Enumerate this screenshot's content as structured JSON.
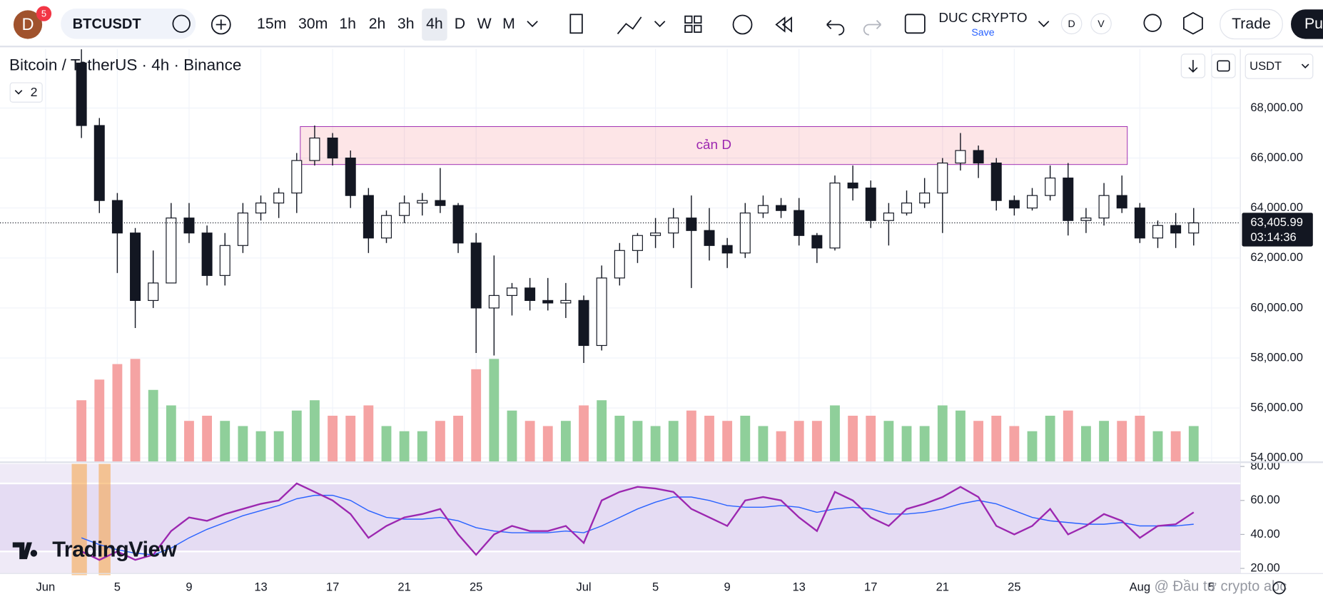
{
  "toolbar": {
    "avatar": "D",
    "badge": "5",
    "symbol": "BTCUSDT",
    "intervals": [
      "15m",
      "30m",
      "1h",
      "2h",
      "3h",
      "4h",
      "D",
      "W",
      "M"
    ],
    "active_interval": 5,
    "layout_name": "DUC CRYPTO",
    "save": "Save",
    "toggles": [
      "D",
      "V"
    ],
    "trade": "Trade",
    "publish": "Pu"
  },
  "legend": {
    "indicators_count": "2"
  },
  "currency": "USDT",
  "logo": "TradingView",
  "watermark": "@ Đầu tư crypto abc",
  "chart_data": [
    {
      "type": "candlestick",
      "title": "Bitcoin / TetherUS · 4h · Binance",
      "candle_color": "#131722",
      "volume_colors": {
        "up": "#8fcf9a",
        "down": "#f5a3a3"
      },
      "x": [
        3,
        4,
        5,
        6,
        7,
        8,
        9,
        10,
        11,
        12,
        13,
        14,
        15,
        16,
        17,
        18,
        19,
        20,
        21,
        22,
        23,
        24,
        25,
        26,
        27,
        28,
        29,
        30,
        31,
        32,
        33,
        34,
        35,
        36,
        37,
        38,
        39,
        40,
        41,
        42,
        43,
        44,
        45,
        46,
        47,
        48,
        49,
        50,
        51,
        52,
        53,
        54,
        55,
        56,
        57,
        58,
        59,
        60,
        61,
        62,
        63,
        64,
        65
      ],
      "open": [
        69800,
        67300,
        64300,
        63000,
        60300,
        61000,
        63600,
        63000,
        61300,
        62500,
        63800,
        64200,
        64600,
        65900,
        66800,
        66000,
        64500,
        62800,
        63700,
        64200,
        64300,
        64100,
        62600,
        60000,
        60500,
        60800,
        60300,
        60200,
        60300,
        58500,
        61200,
        62300,
        62900,
        63000,
        63600,
        63100,
        62500,
        62200,
        63800,
        64100,
        63900,
        62900,
        62400,
        65000,
        64800,
        63500,
        63800,
        64200,
        64600,
        65800,
        66300,
        65800,
        64300,
        64000,
        64500,
        65200,
        63500,
        63600,
        64500,
        64000,
        62800,
        63300,
        63000
      ],
      "high": [
        70350,
        67600,
        64600,
        63200,
        62300,
        64200,
        64200,
        63300,
        63000,
        64200,
        64500,
        64800,
        66200,
        67300,
        67000,
        66300,
        64800,
        63900,
        64500,
        64600,
        65600,
        64200,
        63000,
        62100,
        61000,
        61200,
        61200,
        61000,
        60500,
        61700,
        62600,
        63000,
        63600,
        64000,
        64500,
        64000,
        62800,
        64200,
        64500,
        64400,
        64400,
        63000,
        65300,
        65700,
        65100,
        64200,
        64700,
        65200,
        66000,
        67000,
        66500,
        66000,
        64500,
        64800,
        65700,
        65800,
        64000,
        65000,
        65300,
        64200,
        63500,
        63800,
        64000
      ],
      "low": [
        66800,
        63800,
        61400,
        59200,
        60000,
        61000,
        62600,
        60900,
        60900,
        62200,
        63500,
        63600,
        63800,
        65700,
        65700,
        64000,
        62200,
        62600,
        63400,
        63700,
        63800,
        62200,
        58200,
        58100,
        59700,
        59900,
        59900,
        59600,
        57800,
        58300,
        60900,
        61800,
        62400,
        62400,
        60800,
        61900,
        61600,
        62000,
        63600,
        63600,
        62500,
        61800,
        62300,
        64300,
        63200,
        62500,
        63700,
        64000,
        63000,
        65500,
        65200,
        63900,
        63700,
        63900,
        64300,
        62900,
        63000,
        63300,
        63800,
        62600,
        62400,
        62400,
        62500
      ],
      "close": [
        67300,
        64300,
        63000,
        60300,
        61000,
        63600,
        63000,
        61300,
        62500,
        63800,
        64200,
        64600,
        65900,
        66800,
        66000,
        64500,
        62800,
        63700,
        64200,
        64300,
        64100,
        62600,
        60000,
        60500,
        60800,
        60300,
        60200,
        60300,
        58500,
        61200,
        62300,
        62900,
        63000,
        63600,
        63100,
        62500,
        62200,
        63800,
        64100,
        63900,
        62900,
        62400,
        65000,
        64800,
        63500,
        63800,
        64200,
        64600,
        65800,
        66300,
        65800,
        64300,
        64000,
        64500,
        65200,
        63500,
        63600,
        64500,
        64000,
        62800,
        63300,
        63000,
        63405.99
      ],
      "volume": [
        60,
        80,
        95,
        100,
        70,
        55,
        40,
        45,
        40,
        35,
        30,
        30,
        50,
        60,
        45,
        45,
        55,
        35,
        30,
        30,
        40,
        45,
        90,
        100,
        50,
        40,
        35,
        40,
        55,
        60,
        45,
        40,
        35,
        40,
        50,
        45,
        40,
        45,
        35,
        30,
        40,
        40,
        55,
        45,
        45,
        40,
        35,
        35,
        55,
        50,
        40,
        45,
        35,
        30,
        45,
        50,
        35,
        40,
        40,
        45,
        30,
        30,
        35
      ],
      "volume_lim": [
        0,
        400
      ],
      "xlim": [
        -1.54,
        67.6
      ],
      "xticks": [
        {
          "value": 1,
          "label": "Jun"
        },
        {
          "value": 5,
          "label": "5"
        },
        {
          "value": 9,
          "label": "9"
        },
        {
          "value": 13,
          "label": "13"
        },
        {
          "value": 17,
          "label": "17"
        },
        {
          "value": 21,
          "label": "21"
        },
        {
          "value": 25,
          "label": "25"
        },
        {
          "value": 31,
          "label": "Jul"
        },
        {
          "value": 35,
          "label": "5"
        },
        {
          "value": 39,
          "label": "9"
        },
        {
          "value": 43,
          "label": "13"
        },
        {
          "value": 47,
          "label": "17"
        },
        {
          "value": 51,
          "label": "21"
        },
        {
          "value": 55,
          "label": "25"
        },
        {
          "value": 62,
          "label": "Aug"
        },
        {
          "value": 66,
          "label": "5"
        }
      ],
      "ylim": [
        53830,
        70360
      ],
      "yticks": [
        {
          "value": 54000,
          "label": "54,000.00"
        },
        {
          "value": 56000,
          "label": "56,000.00"
        },
        {
          "value": 58000,
          "label": "58,000.00"
        },
        {
          "value": 60000,
          "label": "60,000.00"
        },
        {
          "value": 62000,
          "label": "62,000.00"
        },
        {
          "value": 64000,
          "label": "64,000.00"
        },
        {
          "value": 66000,
          "label": "66,000.00"
        },
        {
          "value": 68000,
          "label": "68,000.00"
        }
      ],
      "grid": true,
      "last_price": {
        "value": 63405.99,
        "label": "63,405.99"
      },
      "countdown": "03:14:36",
      "zone": {
        "label": "cản D",
        "x": [
          15.2,
          61.3
        ],
        "y": [
          65740,
          67260
        ],
        "color": "#9c27b0"
      }
    },
    {
      "type": "line",
      "x": [
        3,
        4,
        5,
        6,
        7,
        8,
        9,
        10,
        11,
        12,
        13,
        14,
        15,
        16,
        17,
        18,
        19,
        20,
        21,
        22,
        23,
        24,
        25,
        26,
        27,
        28,
        29,
        30,
        31,
        32,
        33,
        34,
        35,
        36,
        37,
        38,
        39,
        40,
        41,
        42,
        43,
        44,
        45,
        46,
        47,
        48,
        49,
        50,
        51,
        52,
        53,
        54,
        55,
        56,
        57,
        58,
        59,
        60,
        61,
        62,
        63,
        64,
        65
      ],
      "series": [
        {
          "color": "#9c27b0",
          "values": [
            30,
            25,
            30,
            25,
            28,
            42,
            50,
            48,
            52,
            55,
            58,
            60,
            70,
            65,
            60,
            52,
            38,
            45,
            50,
            52,
            55,
            40,
            28,
            40,
            45,
            42,
            42,
            45,
            35,
            60,
            65,
            68,
            67,
            65,
            55,
            50,
            45,
            60,
            62,
            60,
            50,
            42,
            65,
            60,
            50,
            45,
            55,
            58,
            62,
            68,
            62,
            45,
            40,
            45,
            55,
            40,
            45,
            52,
            48,
            38,
            45,
            46,
            53
          ]
        },
        {
          "color": "#2962ff",
          "values": [
            38,
            34,
            31,
            29,
            28,
            32,
            38,
            43,
            47,
            51,
            54,
            57,
            61,
            63,
            63,
            60,
            54,
            50,
            49,
            49,
            50,
            48,
            44,
            42,
            41,
            41,
            41,
            42,
            41,
            45,
            50,
            55,
            59,
            62,
            62,
            60,
            57,
            56,
            56,
            57,
            56,
            53,
            55,
            56,
            55,
            52,
            52,
            53,
            55,
            58,
            60,
            58,
            54,
            50,
            48,
            47,
            46,
            46,
            47,
            45,
            45,
            45,
            46
          ]
        }
      ],
      "band": [
        30,
        70
      ],
      "ylim": [
        17,
        82.5
      ],
      "yticks": [
        {
          "value": 20,
          "label": "20.00"
        },
        {
          "value": 40,
          "label": "40.00"
        },
        {
          "value": 60,
          "label": "60.00"
        },
        {
          "value": 80,
          "label": "80.00"
        }
      ]
    }
  ]
}
